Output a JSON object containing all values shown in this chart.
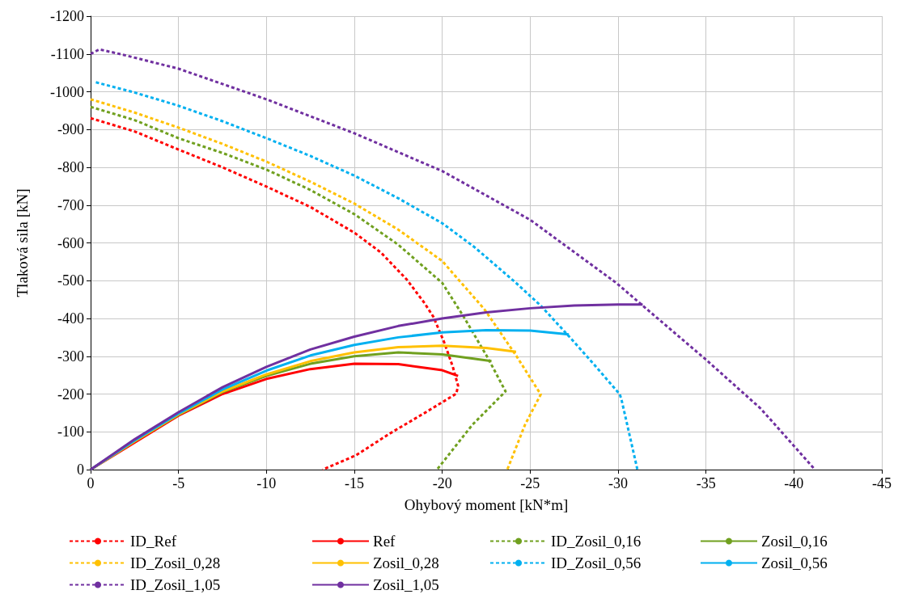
{
  "chart_data": {
    "type": "line",
    "xlabel": "Ohybový moment [kN*m]",
    "ylabel": "Tlaková sila [kN]",
    "xlim": [
      0,
      -45
    ],
    "xticks": [
      0,
      -5,
      -10,
      -15,
      -20,
      -25,
      -30,
      -35,
      -40,
      -45
    ],
    "ylim": [
      0,
      -1200
    ],
    "yticks": [
      0,
      -100,
      -200,
      -300,
      -400,
      -500,
      -600,
      -700,
      -800,
      -900,
      -1000,
      -1100,
      -1200
    ],
    "grid": true,
    "legend": "bottom",
    "marker": "none",
    "series": [
      {
        "name": "ID_Ref",
        "color": "#ff0000",
        "line_style": "dashed",
        "x": [
          0,
          -2.5,
          -5,
          -7.5,
          -10,
          -12.5,
          -15,
          -16.5,
          -18,
          -19,
          -19.5,
          -20.1,
          -20.6,
          -20.9,
          -20.8,
          -19,
          -17,
          -15.1,
          -13.2
        ],
        "values": [
          -930,
          -895,
          -847,
          -800,
          -749,
          -695,
          -627,
          -575,
          -502,
          -440,
          -404,
          -338,
          -272,
          -222,
          -201,
          -150,
          -95,
          -38,
          0
        ]
      },
      {
        "name": "Ref",
        "color": "#ff0000",
        "line_style": "solid",
        "x": [
          0,
          -5,
          -7.5,
          -10,
          -12.5,
          -15,
          -17.5,
          -20,
          -20.9
        ],
        "values": [
          0,
          -143,
          -200,
          -240,
          -266,
          -280,
          -279,
          -263,
          -248
        ]
      },
      {
        "name": "ID_Zosil_0,16",
        "color": "#70a01f",
        "line_style": "dashed",
        "x": [
          0,
          -2.5,
          -5,
          -7.5,
          -10,
          -12.5,
          -15,
          -17.5,
          -20,
          -21.2,
          -22.6,
          -23.6,
          -21.7,
          -19.7
        ],
        "values": [
          -960,
          -925,
          -877,
          -838,
          -794,
          -740,
          -676,
          -595,
          -494,
          -406,
          -295,
          -207,
          -118,
          0
        ]
      },
      {
        "name": "Zosil_0,16",
        "color": "#70a01f",
        "line_style": "solid",
        "x": [
          0,
          -2.5,
          -5,
          -7.5,
          -10,
          -12.5,
          -15,
          -17.5,
          -20,
          -22.8
        ],
        "values": [
          0,
          -75,
          -145,
          -205,
          -248,
          -280,
          -300,
          -310,
          -305,
          -287
        ]
      },
      {
        "name": "ID_Zosil_0,28",
        "color": "#ffc000",
        "line_style": "dashed",
        "x": [
          0,
          -2.5,
          -5,
          -7.5,
          -10,
          -12.5,
          -15,
          -17.5,
          -20,
          -22.4,
          -24.2,
          -25.6,
          -24.7,
          -23.7
        ],
        "values": [
          -980,
          -945,
          -905,
          -862,
          -815,
          -762,
          -704,
          -635,
          -552,
          -424,
          -302,
          -199,
          -118,
          0
        ]
      },
      {
        "name": "Zosil_0,28",
        "color": "#ffc000",
        "line_style": "solid",
        "x": [
          0,
          -2.5,
          -5,
          -7.5,
          -10,
          -12.5,
          -15,
          -17.5,
          -20,
          -22.5,
          -24.2
        ],
        "values": [
          0,
          -75,
          -146,
          -207,
          -252,
          -287,
          -310,
          -324,
          -328,
          -322,
          -312
        ]
      },
      {
        "name": "ID_Zosil_0,56",
        "color": "#00b0f0",
        "line_style": "dashed",
        "x": [
          -0.3,
          -2.5,
          -5,
          -7.5,
          -10,
          -12.5,
          -15,
          -17.5,
          -20,
          -21.8,
          -24.2,
          -25.6,
          -27.2,
          -28.6,
          -30.1,
          -30.2,
          -31.1
        ],
        "values": [
          -1025,
          -998,
          -963,
          -922,
          -877,
          -830,
          -778,
          -718,
          -652,
          -590,
          -494,
          -434,
          -353,
          -280,
          -199,
          -184,
          0
        ]
      },
      {
        "name": "Zosil_0,56",
        "color": "#00b0f0",
        "line_style": "solid",
        "x": [
          0,
          -2.5,
          -5,
          -7.5,
          -10,
          -12.5,
          -15,
          -17.5,
          -20,
          -22.5,
          -25,
          -27.2
        ],
        "values": [
          0,
          -77,
          -148,
          -212,
          -262,
          -302,
          -330,
          -350,
          -363,
          -369,
          -368,
          -358
        ]
      },
      {
        "name": "ID_Zosil_1,05",
        "color": "#7030a0",
        "line_style": "dashed",
        "x": [
          0,
          -0.5,
          -1.75,
          -5,
          -10,
          -15,
          -20,
          -25,
          -29.9,
          -31.4,
          -35,
          -38.1,
          -41.2
        ],
        "values": [
          -1100,
          -1112,
          -1099,
          -1061,
          -980,
          -890,
          -790,
          -661,
          -494,
          -434,
          -291,
          -162,
          0
        ]
      },
      {
        "name": "Zosil_1,05",
        "color": "#7030a0",
        "line_style": "solid",
        "x": [
          0,
          -2.5,
          -5,
          -7.5,
          -10,
          -12.5,
          -15,
          -17.5,
          -20,
          -22.5,
          -25,
          -27.5,
          -30,
          -31.4
        ],
        "values": [
          0,
          -80,
          -152,
          -218,
          -272,
          -318,
          -352,
          -380,
          -400,
          -416,
          -427,
          -434,
          -437,
          -437
        ]
      }
    ]
  }
}
